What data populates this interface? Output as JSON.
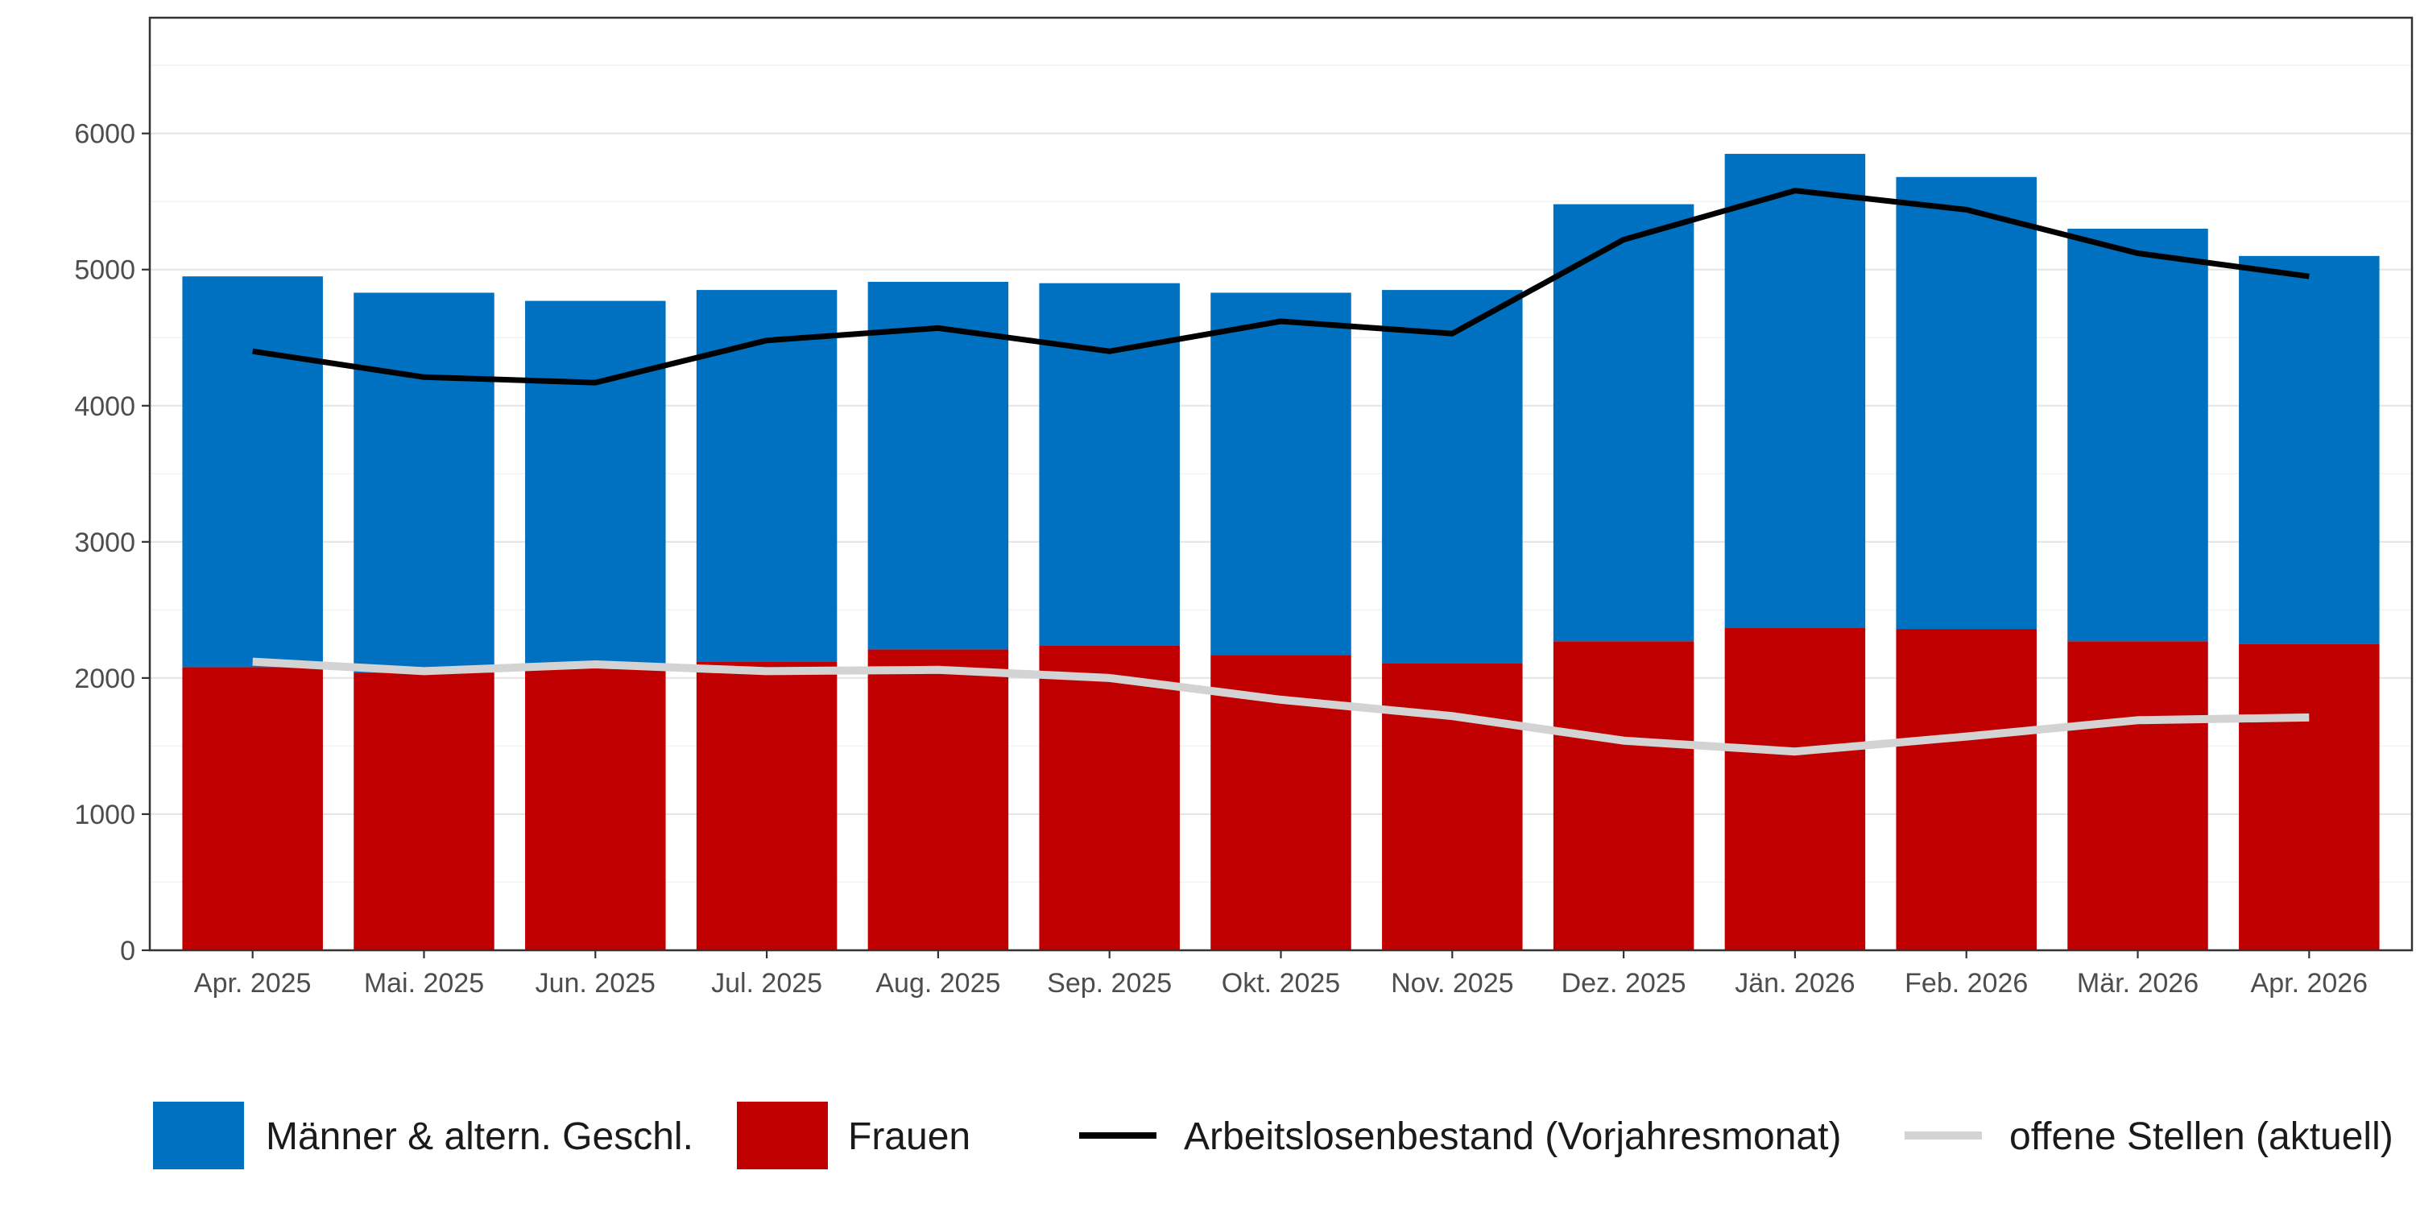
{
  "chart_data": {
    "type": "bar",
    "stacked": true,
    "categories": [
      "Apr. 2025",
      "Mai. 2025",
      "Jun. 2025",
      "Jul. 2025",
      "Aug. 2025",
      "Sep. 2025",
      "Okt. 2025",
      "Nov. 2025",
      "Dez. 2025",
      "Jän. 2026",
      "Feb. 2026",
      "Mär. 2026",
      "Apr. 2026"
    ],
    "series": [
      {
        "name": "Frauen",
        "kind": "bar",
        "color": "#c00000",
        "values": [
          2080,
          2040,
          2080,
          2120,
          2210,
          2240,
          2170,
          2110,
          2270,
          2370,
          2360,
          2270,
          2250
        ]
      },
      {
        "name": "Männer & altern. Geschl.",
        "kind": "bar",
        "color": "#0070c0",
        "values": [
          2870,
          2790,
          2690,
          2730,
          2700,
          2660,
          2660,
          2740,
          3210,
          3480,
          3320,
          3030,
          2850
        ]
      },
      {
        "name": "Arbeitslosenbestand (Vorjahresmonat)",
        "kind": "line",
        "color": "#000000",
        "values": [
          4400,
          4210,
          4170,
          4480,
          4570,
          4400,
          4620,
          4530,
          5220,
          5580,
          5440,
          5120,
          4950
        ]
      },
      {
        "name": "offene Stellen (aktuell)",
        "kind": "line",
        "color": "#d3d3d3",
        "values": [
          2120,
          2050,
          2100,
          2050,
          2060,
          2000,
          1840,
          1720,
          1540,
          1460,
          1570,
          1690,
          1710
        ]
      }
    ],
    "xlabel": "",
    "ylabel": "",
    "ylim": [
      0,
      6850
    ],
    "yticks": [
      0,
      1000,
      2000,
      3000,
      4000,
      5000,
      6000
    ],
    "grid": true,
    "legend": {
      "position": "bottom",
      "items": [
        {
          "label": "Männer & altern. Geschl.",
          "kind": "bar",
          "color": "#0070c0"
        },
        {
          "label": "Frauen",
          "kind": "bar",
          "color": "#c00000"
        },
        {
          "label": "Arbeitslosenbestand (Vorjahresmonat)",
          "kind": "line",
          "color": "#000000"
        },
        {
          "label": "offene Stellen (aktuell)",
          "kind": "line",
          "color": "#d3d3d3"
        }
      ]
    }
  }
}
